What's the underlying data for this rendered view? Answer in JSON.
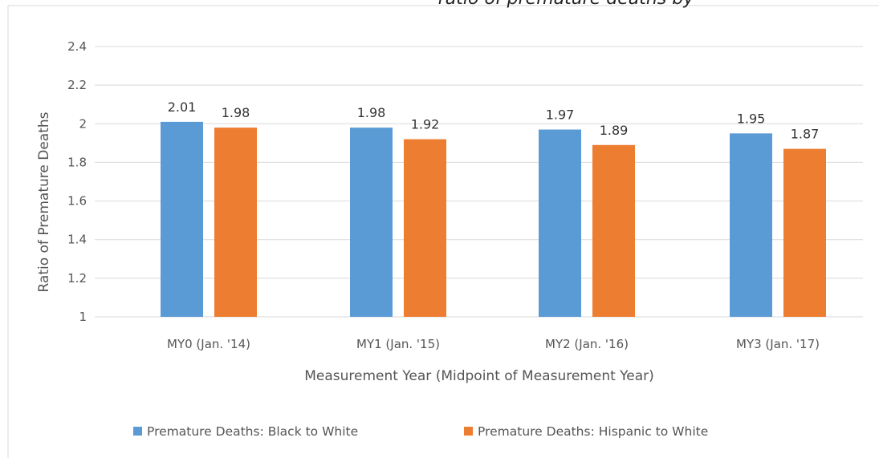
{
  "chart_data": {
    "type": "bar",
    "title_fragment": "ratio of premature deaths by",
    "categories": [
      "MY0 (Jan. '14)",
      "MY1 (Jan. '15)",
      "MY2 (Jan. '16)",
      "MY3 (Jan. '17)"
    ],
    "series": [
      {
        "name": "Premature Deaths: Black to White",
        "color": "#5b9bd5",
        "values": [
          2.01,
          1.98,
          1.97,
          1.95
        ],
        "labels": [
          "2.01",
          "1.98",
          "1.97",
          "1.95"
        ]
      },
      {
        "name": "Premature Deaths: Hispanic to White",
        "color": "#ed7d31",
        "values": [
          1.98,
          1.92,
          1.89,
          1.87
        ],
        "labels": [
          "1.98",
          "1.92",
          "1.89",
          "1.87"
        ]
      }
    ],
    "xlabel": "Measurement Year (Midpoint of Measurement Year)",
    "ylabel": "Ratio of Premature Deaths",
    "ylim": [
      1,
      2.4
    ],
    "yticks": [
      1,
      1.2,
      1.4,
      1.6,
      1.8,
      2,
      2.2,
      2.4
    ],
    "ytick_labels": [
      "1",
      "1.2",
      "1.4",
      "1.6",
      "1.8",
      "2",
      "2.2",
      "2.4"
    ],
    "grid": true,
    "legend_position": "bottom"
  }
}
